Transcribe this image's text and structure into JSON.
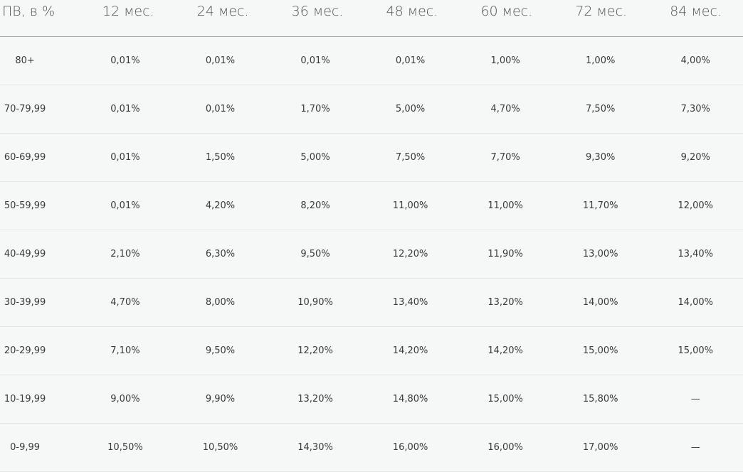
{
  "table": {
    "headers": [
      "ПВ, в %",
      "12 мес.",
      "24 мес.",
      "36 мес.",
      "48 мес.",
      "60 мес.",
      "72 мес.",
      "84 мес."
    ],
    "rows": [
      [
        "80+",
        "0,01%",
        "0,01%",
        "0,01%",
        "0,01%",
        "1,00%",
        "1,00%",
        "4,00%"
      ],
      [
        "70-79,99",
        "0,01%",
        "0,01%",
        "1,70%",
        "5,00%",
        "4,70%",
        "7,50%",
        "7,30%"
      ],
      [
        "60-69,99",
        "0,01%",
        "1,50%",
        "5,00%",
        "7,50%",
        "7,70%",
        "9,30%",
        "9,20%"
      ],
      [
        "50-59,99",
        "0,01%",
        "4,20%",
        "8,20%",
        "11,00%",
        "11,00%",
        "11,70%",
        "12,00%"
      ],
      [
        "40-49,99",
        "2,10%",
        "6,30%",
        "9,50%",
        "12,20%",
        "11,90%",
        "13,00%",
        "13,40%"
      ],
      [
        "30-39,99",
        "4,70%",
        "8,00%",
        "10,90%",
        "13,40%",
        "13,20%",
        "14,00%",
        "14,00%"
      ],
      [
        "20-29,99",
        "7,10%",
        "9,50%",
        "12,20%",
        "14,20%",
        "14,20%",
        "15,00%",
        "15,00%"
      ],
      [
        "10-19,99",
        "9,00%",
        "9,90%",
        "13,20%",
        "14,80%",
        "15,00%",
        "15,80%",
        "—"
      ],
      [
        "0-9,99",
        "10,50%",
        "10,50%",
        "14,30%",
        "16,00%",
        "16,00%",
        "17,00%",
        "—"
      ]
    ]
  }
}
